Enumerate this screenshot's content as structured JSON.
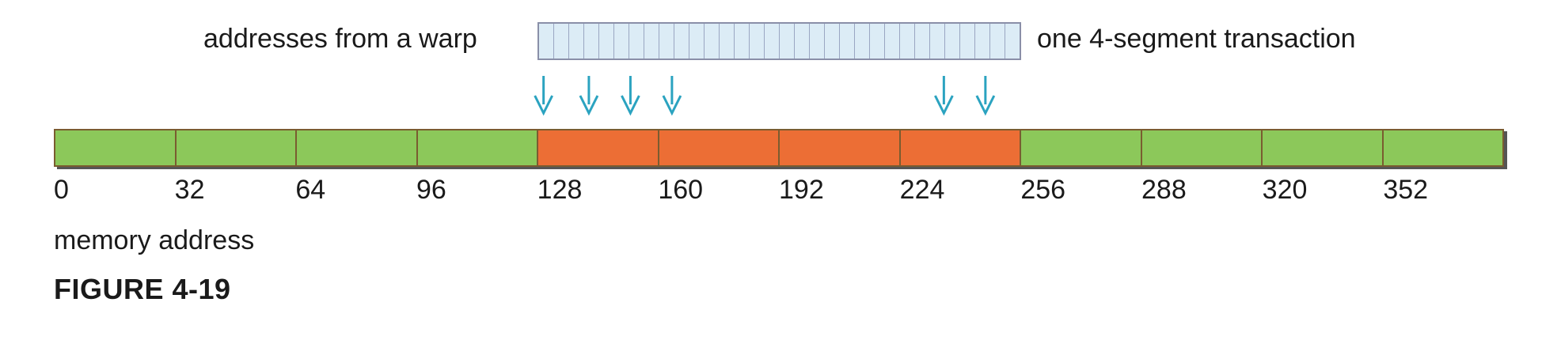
{
  "labels": {
    "warp": "addresses from a warp",
    "transaction": "one 4-segment transaction",
    "axis": "memory address",
    "figure": "FIGURE 4-19"
  },
  "warp_cells": 32,
  "segments": [
    "green",
    "green",
    "green",
    "green",
    "orange",
    "orange",
    "orange",
    "orange",
    "green",
    "green",
    "green",
    "green"
  ],
  "colors": {
    "green": "#8cc85a",
    "orange": "#ec6e35",
    "arrow": "#2ba3c0"
  },
  "ticks": [
    "0",
    "32",
    "64",
    "96",
    "128",
    "160",
    "192",
    "224",
    "256",
    "288",
    "320",
    "352"
  ],
  "arrow_addresses": [
    128,
    140,
    151,
    162,
    234,
    245
  ]
}
